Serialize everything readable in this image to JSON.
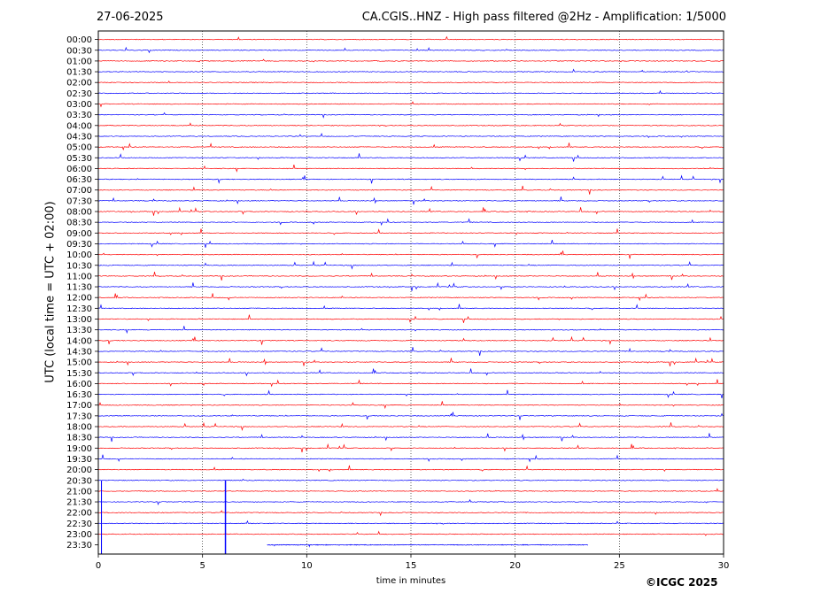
{
  "header": {
    "date": "27-06-2025",
    "title": "CA.CGIS..HNZ - High pass filtered @2Hz - Amplification: 1/5000"
  },
  "copyright": "©ICGC 2025",
  "colors": {
    "odd_trace": "#ff0000",
    "even_trace": "#0000ff",
    "grid": "#000000"
  },
  "chart_data": {
    "type": "line",
    "subtype": "helicorder",
    "title": "CA.CGIS..HNZ - High pass filtered @2Hz - Amplification: 1/5000",
    "xlabel": "time in minutes",
    "ylabel": "UTC (local time = UTC + 02:00)",
    "xlim": [
      0,
      30
    ],
    "xticks": [
      0,
      5,
      10,
      15,
      20,
      25,
      30
    ],
    "vertical_gridlines": [
      5,
      10,
      15,
      20,
      25
    ],
    "rows": [
      "00:00",
      "00:30",
      "01:00",
      "01:30",
      "02:00",
      "02:30",
      "03:00",
      "03:30",
      "04:00",
      "04:30",
      "05:00",
      "05:30",
      "06:00",
      "06:30",
      "07:00",
      "07:30",
      "08:00",
      "08:30",
      "09:00",
      "09:30",
      "10:00",
      "10:30",
      "11:00",
      "11:30",
      "12:00",
      "12:30",
      "13:00",
      "13:30",
      "14:00",
      "14:30",
      "15:00",
      "15:30",
      "16:00",
      "16:30",
      "17:00",
      "17:30",
      "18:00",
      "18:30",
      "19:00",
      "19:30",
      "20:00",
      "20:30",
      "21:00",
      "21:30",
      "22:00",
      "22:30",
      "23:00",
      "23:30"
    ],
    "row_colors": [
      "red",
      "blue"
    ],
    "last_trace_start_min": 8.1,
    "last_trace_end_min": 23.5
  }
}
